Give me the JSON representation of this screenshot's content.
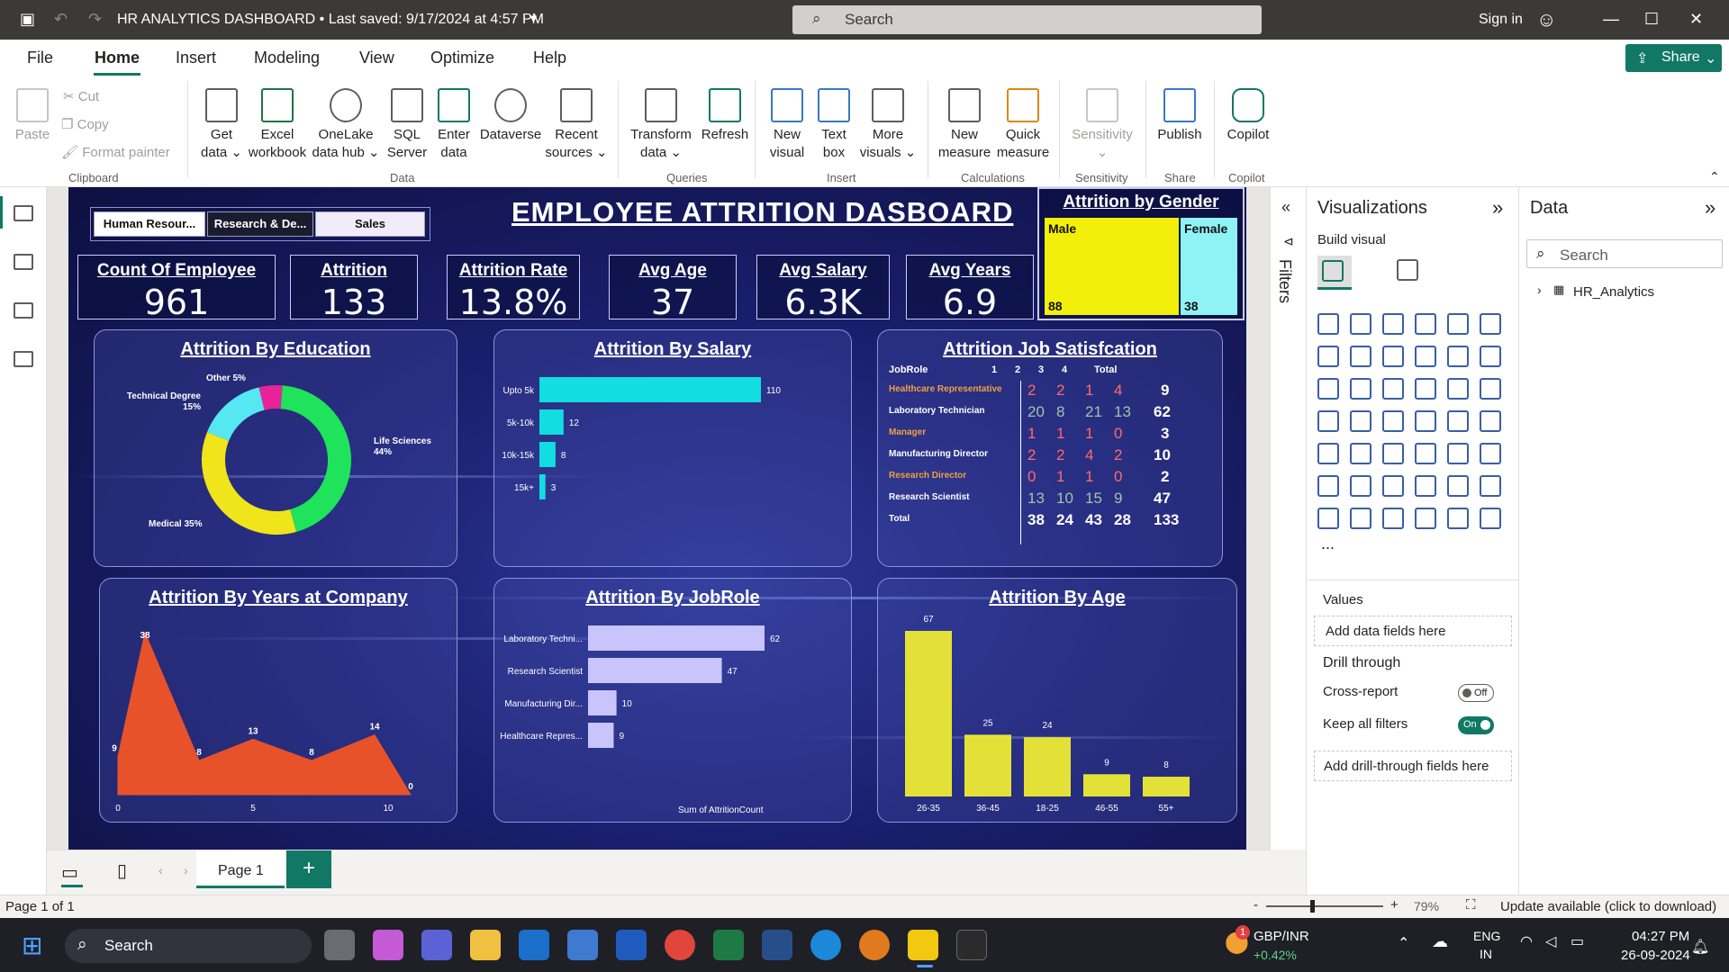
{
  "titlebar": {
    "title": "HR ANALYTICS DASHBOARD • Last saved: 9/17/2024 at 4:57 PM",
    "search_placeholder": "Search",
    "signin": "Sign in"
  },
  "menu": [
    "File",
    "Home",
    "Insert",
    "Modeling",
    "View",
    "Optimize",
    "Help"
  ],
  "share_label": "Share",
  "ribbon": {
    "clipboard": {
      "paste": "Paste",
      "cut": "Cut",
      "copy": "Copy",
      "format_painter": "Format painter",
      "group": "Clipboard"
    },
    "data": [
      {
        "l1": "Get",
        "l2": "data ⌄"
      },
      {
        "l1": "Excel",
        "l2": "workbook"
      },
      {
        "l1": "OneLake",
        "l2": "data hub ⌄"
      },
      {
        "l1": "SQL",
        "l2": "Server"
      },
      {
        "l1": "Enter",
        "l2": "data"
      },
      {
        "l1": "Dataverse",
        "l2": ""
      },
      {
        "l1": "Recent",
        "l2": "sources ⌄"
      }
    ],
    "data_group": "Data",
    "queries": [
      {
        "l1": "Transform",
        "l2": "data ⌄"
      },
      {
        "l1": "Refresh",
        "l2": ""
      }
    ],
    "queries_group": "Queries",
    "insert": [
      {
        "l1": "New",
        "l2": "visual"
      },
      {
        "l1": "Text",
        "l2": "box"
      },
      {
        "l1": "More",
        "l2": "visuals ⌄"
      }
    ],
    "insert_group": "Insert",
    "calculations": [
      {
        "l1": "New",
        "l2": "measure"
      },
      {
        "l1": "Quick",
        "l2": "measure"
      }
    ],
    "calculations_group": "Calculations",
    "sensitivity": {
      "l1": "Sensitivity",
      "l2": "⌄",
      "group": "Sensitivity"
    },
    "share": {
      "l1": "Publish",
      "group": "Share"
    },
    "copilot": {
      "l1": "Copilot",
      "group": "Copilot"
    }
  },
  "dashboard": {
    "title": "EMPLOYEE  ATTRITION DASBOARD",
    "slicers": [
      "Human Resour...",
      "Research & De...",
      "Sales"
    ],
    "kpis": [
      {
        "title": "Count Of Employee",
        "value": "961"
      },
      {
        "title": "Attrition",
        "value": "133"
      },
      {
        "title": "Attrition Rate",
        "value": "13.8%"
      },
      {
        "title": "Avg Age",
        "value": "37"
      },
      {
        "title": "Avg Salary",
        "value": "6.3K"
      },
      {
        "title": "Avg Years",
        "value": "6.9"
      }
    ],
    "gender": {
      "title": "Attrition by Gender",
      "male_label": "Male",
      "female_label": "Female",
      "male": 88,
      "female": 38,
      "male_color": "#f2ef0a",
      "female_color": "#8ff3f6"
    }
  },
  "chart_data": [
    {
      "type": "pie",
      "title": "Attrition By Education",
      "labels": [
        "Life Sciences 44%",
        "Medical 35%",
        "Technical Degree 15%",
        "Other 5%"
      ],
      "values": [
        44,
        35,
        15,
        5
      ],
      "colors": [
        "#1fe35a",
        "#f0e41a",
        "#55e8f2",
        "#e8239a"
      ]
    },
    {
      "type": "bar",
      "title": "Attrition By Salary",
      "categories": [
        "Upto 5k",
        "5k-10k",
        "10k-15k",
        "15k+"
      ],
      "values": [
        110,
        12,
        8,
        3
      ],
      "color": "#12dde0"
    },
    {
      "type": "table",
      "title": "Attrition Job Satisfcation",
      "columns": [
        "JobRole",
        "1",
        "2",
        "3",
        "4",
        "Total"
      ],
      "rows": [
        {
          "role": "Healthcare Representative",
          "v": [
            "2",
            "2",
            "1",
            "4"
          ],
          "total": "9"
        },
        {
          "role": "Laboratory Technician",
          "v": [
            "20",
            "8",
            "21",
            "13"
          ],
          "total": "62"
        },
        {
          "role": "Manager",
          "v": [
            "1",
            "1",
            "1",
            "0"
          ],
          "total": "3"
        },
        {
          "role": "Manufacturing Director",
          "v": [
            "2",
            "2",
            "4",
            "2"
          ],
          "total": "10"
        },
        {
          "role": "Research Director",
          "v": [
            "0",
            "1",
            "1",
            "0"
          ],
          "total": "2"
        },
        {
          "role": "Research Scientist",
          "v": [
            "13",
            "10",
            "15",
            "9"
          ],
          "total": "47"
        },
        {
          "role": "Total",
          "v": [
            "38",
            "24",
            "43",
            "28"
          ],
          "total": "133"
        }
      ]
    },
    {
      "type": "area",
      "title": "Attrition By Years at Company",
      "values": [
        9,
        38,
        8,
        13,
        8,
        14,
        0
      ],
      "point_labels": [
        "9",
        "38",
        "8",
        "13",
        "8",
        "14",
        "0"
      ],
      "xticks": [
        "0",
        "5",
        "10"
      ],
      "color": "#e8522a"
    },
    {
      "type": "bar",
      "title": "Attrition By JobRole",
      "categories": [
        "Laboratory Techni...",
        "Research Scientist",
        "Manufacturing Dir...",
        "Healthcare Repres..."
      ],
      "values": [
        62,
        47,
        10,
        9
      ],
      "xlabel": "Sum of AttritionCount",
      "color": "#c9c4fb"
    },
    {
      "type": "bar",
      "title": "Attrition By Age",
      "categories": [
        "26-35",
        "36-45",
        "18-25",
        "46-55",
        "55+"
      ],
      "values": [
        67,
        25,
        24,
        9,
        8
      ],
      "color": "#e3e138"
    }
  ],
  "panes": {
    "filters": "Filters",
    "visualizations": "Visualizations",
    "build_visual": "Build visual",
    "values": "Values",
    "add_data": "Add data fields here",
    "drill": "Drill through",
    "cross_report": "Cross-report",
    "off": "Off",
    "keep_filters": "Keep all filters",
    "on": "On",
    "add_drill": "Add drill-through fields here",
    "data": "Data",
    "data_search": "Search",
    "table": "HR_Analytics",
    "more": "..."
  },
  "pages": {
    "page1": "Page 1",
    "add": "+"
  },
  "status": {
    "page": "Page 1 of 1",
    "zoom": "79%",
    "update": "Update available (click to download)"
  },
  "taskbar": {
    "search": "Search",
    "stock_name": "GBP/INR",
    "stock_change": "+0.42%",
    "lang1": "ENG",
    "lang2": "IN",
    "time": "04:27 PM",
    "date": "26-09-2024",
    "badge": "1"
  }
}
